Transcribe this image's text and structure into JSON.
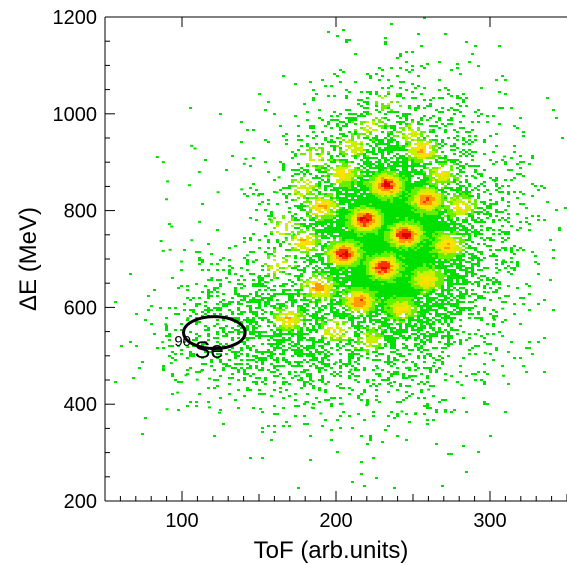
{
  "chart_data": {
    "type": "heatmap",
    "title": "",
    "xlabel": "ToF (arb.units)",
    "ylabel": "ΔE (MeV)",
    "xlim": [
      50,
      350
    ],
    "ylim": [
      200,
      1200
    ],
    "x_ticks": [
      100,
      200,
      300
    ],
    "y_ticks": [
      200,
      400,
      600,
      800,
      1000,
      1200
    ],
    "grid": false,
    "colormap": [
      "#00e000",
      "#66f000",
      "#c8f000",
      "#ffe000",
      "#ff9a00",
      "#ff3000",
      "#e00000"
    ],
    "peaks": [
      {
        "x": 232,
        "y": 1030,
        "intensity": 0.28
      },
      {
        "x": 222,
        "y": 975,
        "intensity": 0.4
      },
      {
        "x": 248,
        "y": 960,
        "intensity": 0.4
      },
      {
        "x": 210,
        "y": 935,
        "intensity": 0.45
      },
      {
        "x": 255,
        "y": 928,
        "intensity": 0.62
      },
      {
        "x": 185,
        "y": 915,
        "intensity": 0.4
      },
      {
        "x": 203,
        "y": 878,
        "intensity": 0.55
      },
      {
        "x": 268,
        "y": 878,
        "intensity": 0.5
      },
      {
        "x": 232,
        "y": 855,
        "intensity": 0.95
      },
      {
        "x": 178,
        "y": 850,
        "intensity": 0.45
      },
      {
        "x": 258,
        "y": 825,
        "intensity": 0.8
      },
      {
        "x": 190,
        "y": 810,
        "intensity": 0.62
      },
      {
        "x": 280,
        "y": 812,
        "intensity": 0.5
      },
      {
        "x": 218,
        "y": 783,
        "intensity": 0.98
      },
      {
        "x": 165,
        "y": 770,
        "intensity": 0.42
      },
      {
        "x": 244,
        "y": 752,
        "intensity": 1.0
      },
      {
        "x": 178,
        "y": 738,
        "intensity": 0.6
      },
      {
        "x": 272,
        "y": 730,
        "intensity": 0.62
      },
      {
        "x": 204,
        "y": 713,
        "intensity": 1.0
      },
      {
        "x": 230,
        "y": 685,
        "intensity": 0.95
      },
      {
        "x": 160,
        "y": 690,
        "intensity": 0.42
      },
      {
        "x": 258,
        "y": 660,
        "intensity": 0.6
      },
      {
        "x": 188,
        "y": 643,
        "intensity": 0.72
      },
      {
        "x": 214,
        "y": 615,
        "intensity": 0.78
      },
      {
        "x": 242,
        "y": 600,
        "intensity": 0.5
      },
      {
        "x": 168,
        "y": 578,
        "intensity": 0.55
      },
      {
        "x": 198,
        "y": 555,
        "intensity": 0.5
      },
      {
        "x": 222,
        "y": 535,
        "intensity": 0.4
      }
    ],
    "annotations": [
      {
        "type": "ellipse",
        "x": 121,
        "y": 548,
        "rx": 20,
        "ry": 33
      },
      {
        "type": "text",
        "mass_number": "90",
        "element": "Se",
        "x": 108,
        "y": 495
      }
    ]
  }
}
